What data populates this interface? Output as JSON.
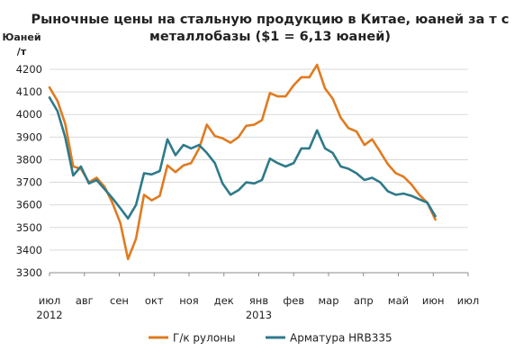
{
  "chart_data": {
    "type": "line",
    "title": [
      "Рыночные цены на стальную продукцию в Китае, юаней за т с",
      "металлобазы ($1 = 6,13 юаней)"
    ],
    "ylabel": [
      "Юаней",
      "/т"
    ],
    "xlabel": "",
    "ylim": [
      3300,
      4200
    ],
    "yticks": [
      3300,
      3400,
      3500,
      3600,
      3700,
      3800,
      3900,
      4000,
      4100,
      4200
    ],
    "x_ticks": [
      {
        "label": "июл",
        "x": 0
      },
      {
        "label": "авг",
        "x": 1
      },
      {
        "label": "сен",
        "x": 2
      },
      {
        "label": "окт",
        "x": 3
      },
      {
        "label": "ноя",
        "x": 4
      },
      {
        "label": "дек",
        "x": 5
      },
      {
        "label": "янв",
        "x": 6
      },
      {
        "label": "фев",
        "x": 7
      },
      {
        "label": "мар",
        "x": 8
      },
      {
        "label": "апр",
        "x": 9
      },
      {
        "label": "май",
        "x": 10
      },
      {
        "label": "июн",
        "x": 11
      },
      {
        "label": "июл",
        "x": 12
      }
    ],
    "year_labels": [
      {
        "label": "2012",
        "x": 0
      },
      {
        "label": "2013",
        "x": 6
      }
    ],
    "grid": true,
    "legend_position": "bottom",
    "series": [
      {
        "name": "Г/к рулоны",
        "color": "#E07B1F",
        "x": [
          0,
          0.23,
          0.45,
          0.68,
          0.9,
          1.13,
          1.35,
          1.58,
          1.8,
          2.03,
          2.25,
          2.48,
          2.71,
          2.93,
          3.16,
          3.38,
          3.61,
          3.84,
          4.06,
          4.29,
          4.51,
          4.74,
          4.96,
          5.19,
          5.42,
          5.64,
          5.87,
          6.09,
          6.32,
          6.54,
          6.77,
          7.0,
          7.22,
          7.45,
          7.67,
          7.9,
          8.12,
          8.35,
          8.57,
          8.8,
          9.03,
          9.25,
          9.48,
          9.7,
          9.93,
          10.15,
          10.38,
          10.6,
          10.83,
          11.06
        ],
        "values": [
          4120,
          4060,
          3960,
          3770,
          3760,
          3700,
          3720,
          3680,
          3610,
          3520,
          3360,
          3450,
          3645,
          3620,
          3640,
          3775,
          3745,
          3775,
          3785,
          3850,
          3955,
          3905,
          3895,
          3875,
          3900,
          3950,
          3955,
          3975,
          4095,
          4080,
          4080,
          4130,
          4165,
          4165,
          4220,
          4115,
          4070,
          3985,
          3940,
          3925,
          3865,
          3890,
          3835,
          3780,
          3740,
          3725,
          3690,
          3645,
          3610,
          3535
        ]
      },
      {
        "name": "Арматура HRB335",
        "color": "#2E7A8A",
        "x": [
          0,
          0.23,
          0.45,
          0.68,
          0.9,
          1.13,
          1.35,
          1.58,
          1.8,
          2.03,
          2.25,
          2.48,
          2.71,
          2.93,
          3.16,
          3.38,
          3.61,
          3.84,
          4.06,
          4.29,
          4.51,
          4.74,
          4.96,
          5.19,
          5.42,
          5.64,
          5.87,
          6.09,
          6.32,
          6.54,
          6.77,
          7.0,
          7.22,
          7.45,
          7.67,
          7.9,
          8.12,
          8.35,
          8.57,
          8.8,
          9.03,
          9.25,
          9.48,
          9.7,
          9.93,
          10.15,
          10.38,
          10.6,
          10.83,
          11.06
        ],
        "values": [
          4075,
          4015,
          3900,
          3730,
          3770,
          3695,
          3710,
          3670,
          3630,
          3585,
          3540,
          3600,
          3740,
          3735,
          3750,
          3890,
          3820,
          3865,
          3850,
          3865,
          3830,
          3785,
          3695,
          3645,
          3665,
          3700,
          3695,
          3710,
          3805,
          3785,
          3770,
          3785,
          3850,
          3850,
          3930,
          3850,
          3830,
          3770,
          3760,
          3740,
          3710,
          3720,
          3700,
          3660,
          3645,
          3650,
          3640,
          3625,
          3610,
          3550
        ]
      }
    ]
  }
}
